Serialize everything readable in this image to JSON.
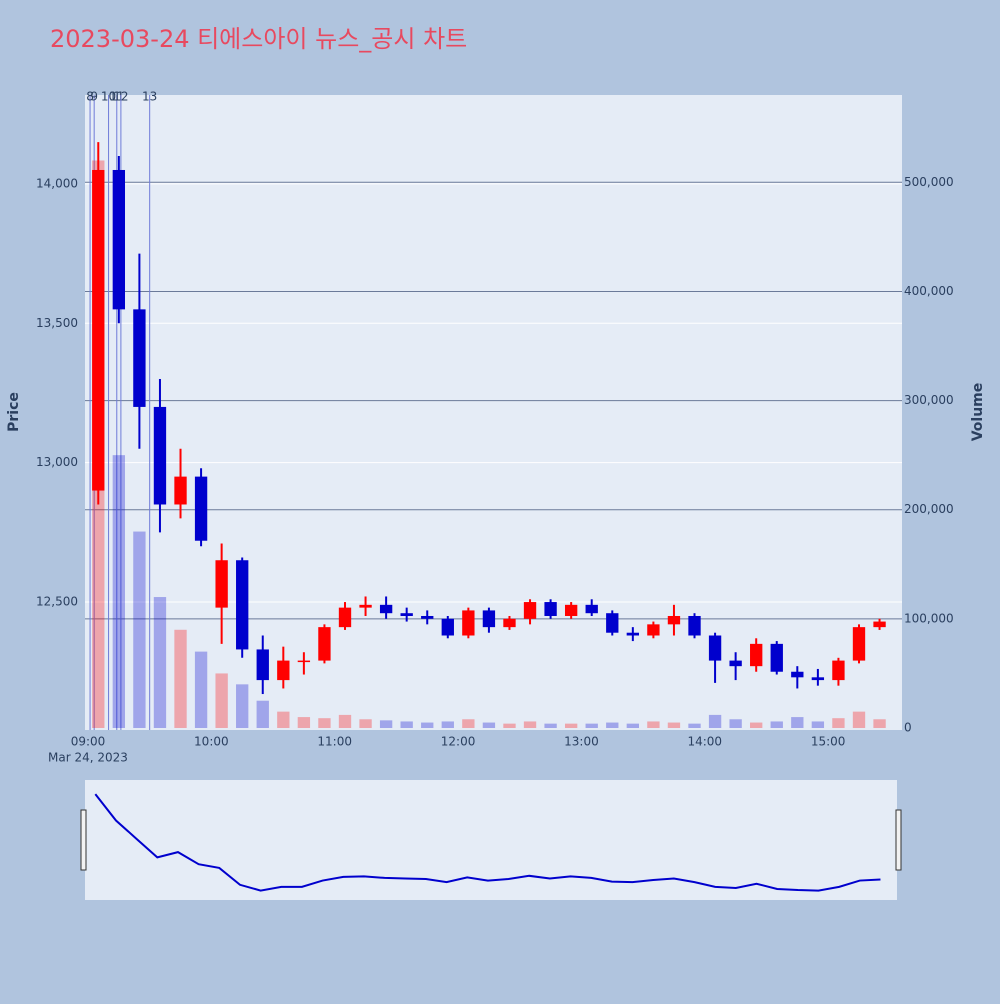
{
  "chart_data": {
    "type": "candlestick",
    "title": "2023-03-24 티에스아이 뉴스_공시 차트",
    "y_label": "Price",
    "y2_label": "Volume",
    "x_date_label": "Mar 24, 2023",
    "x": [
      "2023-03-24 09:00",
      "2023-03-24 09:10",
      "2023-03-24 09:20",
      "2023-03-24 09:30",
      "2023-03-24 09:40",
      "2023-03-24 09:50",
      "2023-03-24 10:00",
      "2023-03-24 10:10",
      "2023-03-24 10:20",
      "2023-03-24 10:30",
      "2023-03-24 10:40",
      "2023-03-24 10:50",
      "2023-03-24 11:00",
      "2023-03-24 11:10",
      "2023-03-24 11:20",
      "2023-03-24 11:30",
      "2023-03-24 11:40",
      "2023-03-24 11:50",
      "2023-03-24 12:00",
      "2023-03-24 12:10",
      "2023-03-24 12:20",
      "2023-03-24 12:30",
      "2023-03-24 12:40",
      "2023-03-24 12:50",
      "2023-03-24 13:00",
      "2023-03-24 13:10",
      "2023-03-24 13:20",
      "2023-03-24 13:30",
      "2023-03-24 13:40",
      "2023-03-24 13:50",
      "2023-03-24 14:00",
      "2023-03-24 14:10",
      "2023-03-24 14:20",
      "2023-03-24 14:30",
      "2023-03-24 14:40",
      "2023-03-24 14:50",
      "2023-03-24 15:00",
      "2023-03-24 15:10",
      "2023-03-24 15:20"
    ],
    "open": [
      12900,
      14050,
      13550,
      13200,
      12850,
      12950,
      12480,
      12650,
      12330,
      12220,
      12290,
      12290,
      12410,
      12480,
      12490,
      12460,
      12450,
      12440,
      12380,
      12470,
      12410,
      12440,
      12500,
      12450,
      12490,
      12460,
      12390,
      12380,
      12420,
      12450,
      12380,
      12290,
      12270,
      12350,
      12250,
      12230,
      12220,
      12290,
      12410
    ],
    "high": [
      14150,
      14100,
      13750,
      13300,
      13050,
      12980,
      12710,
      12660,
      12380,
      12340,
      12320,
      12420,
      12500,
      12520,
      12520,
      12480,
      12470,
      12450,
      12480,
      12480,
      12450,
      12510,
      12510,
      12500,
      12510,
      12470,
      12410,
      12430,
      12490,
      12460,
      12390,
      12320,
      12370,
      12360,
      12270,
      12260,
      12300,
      12420,
      12440
    ],
    "low": [
      12850,
      13500,
      13050,
      12750,
      12800,
      12700,
      12350,
      12300,
      12170,
      12190,
      12240,
      12280,
      12400,
      12450,
      12440,
      12430,
      12420,
      12370,
      12370,
      12390,
      12400,
      12420,
      12440,
      12440,
      12450,
      12380,
      12360,
      12370,
      12380,
      12370,
      12210,
      12220,
      12250,
      12240,
      12190,
      12200,
      12200,
      12280,
      12400
    ],
    "close": [
      14050,
      13550,
      13200,
      12850,
      12950,
      12720,
      12650,
      12330,
      12220,
      12290,
      12290,
      12410,
      12480,
      12490,
      12460,
      12450,
      12440,
      12380,
      12470,
      12410,
      12440,
      12500,
      12450,
      12490,
      12460,
      12390,
      12380,
      12420,
      12450,
      12380,
      12290,
      12270,
      12350,
      12250,
      12230,
      12220,
      12290,
      12410,
      12430
    ],
    "volume": [
      520000,
      250000,
      180000,
      120000,
      90000,
      70000,
      50000,
      40000,
      25000,
      15000,
      10000,
      9000,
      12000,
      8000,
      7000,
      6000,
      5000,
      6000,
      8000,
      5000,
      4000,
      6000,
      4000,
      4000,
      4000,
      5000,
      4000,
      6000,
      5000,
      4000,
      12000,
      8000,
      5000,
      6000,
      10000,
      6000,
      9000,
      15000,
      8000
    ],
    "up_color": "#ff0000",
    "down_color": "#0000cd",
    "xlim": [
      "2023-03-24 09:00",
      "2023-03-24 15:33"
    ],
    "xticks": [
      {
        "value": "2023-03-24 09:00",
        "label": "09:00"
      },
      {
        "value": "2023-03-24 10:00",
        "label": "10:00"
      },
      {
        "value": "2023-03-24 11:00",
        "label": "11:00"
      },
      {
        "value": "2023-03-24 12:00",
        "label": "12:00"
      },
      {
        "value": "2023-03-24 13:00",
        "label": "13:00"
      },
      {
        "value": "2023-03-24 14:00",
        "label": "14:00"
      },
      {
        "value": "2023-03-24 15:00",
        "label": "15:00"
      }
    ],
    "ylim": [
      12041,
      14319
    ],
    "yticks": [
      {
        "value": 12500,
        "label": "12,500"
      },
      {
        "value": 13000,
        "label": "13,000"
      },
      {
        "value": 13500,
        "label": "13,500"
      },
      {
        "value": 14000,
        "label": "14,000"
      }
    ],
    "y2lim": [
      0,
      580000
    ],
    "y2ticks": [
      0,
      {
        "value": 100000,
        "label": "100,000"
      },
      {
        "value": 200000,
        "label": "200,000"
      },
      {
        "value": 300000,
        "label": "300,000"
      },
      {
        "value": 400000,
        "label": "400,000"
      },
      {
        "value": 500000,
        "label": "500,000"
      }
    ],
    "annotations": [
      {
        "x": "2023-03-24 09:01",
        "text": "8"
      },
      {
        "x": "2023-03-24 09:03",
        "text": "9"
      },
      {
        "x": "2023-03-24 09:10",
        "text": "10"
      },
      {
        "x": "2023-03-24 09:14",
        "text": "11"
      },
      {
        "x": "2023-03-24 09:16",
        "text": "12"
      },
      {
        "x": "2023-03-24 09:30",
        "text": "13"
      }
    ],
    "grid": true,
    "rangeslider": true
  }
}
